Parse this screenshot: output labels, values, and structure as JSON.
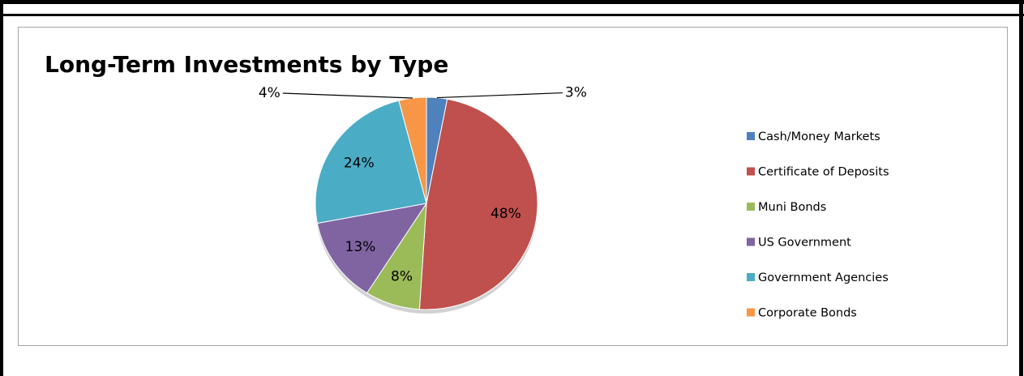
{
  "chart_data": {
    "type": "pie",
    "title": "Long-Term Investments by Type",
    "legend_position": "right",
    "slices": [
      {
        "label": "Cash/Money Markets",
        "value": 3,
        "display": "3%",
        "color": "#4f81bd"
      },
      {
        "label": "Certificate of Deposits",
        "value": 48,
        "display": "48%",
        "color": "#c0504d"
      },
      {
        "label": "Muni Bonds",
        "value": 8,
        "display": "8%",
        "color": "#9bbb59"
      },
      {
        "label": "US Government",
        "value": 13,
        "display": "13%",
        "color": "#8064a2"
      },
      {
        "label": "Government Agencies",
        "value": 24,
        "display": "24%",
        "color": "#4bacc6"
      },
      {
        "label": "Corporate Bonds",
        "value": 4,
        "display": "4%",
        "color": "#f79646"
      }
    ]
  }
}
